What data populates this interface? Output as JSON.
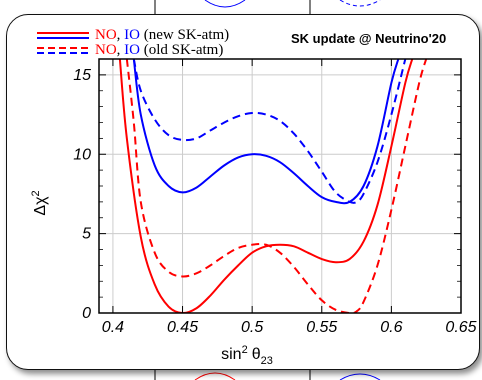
{
  "colors": {
    "normal_ordering": "#ff0000",
    "inverted_ordering": "#0000ff",
    "frame": "#000000",
    "grid": "#cccccc"
  },
  "annotation": "SK update @ Neutrino'20",
  "chart_data": {
    "type": "line",
    "title": "",
    "xlabel": "sin² θ₂₃",
    "xlabel_parts": {
      "main": "sin",
      "sup": "2",
      "theta": "θ",
      "sub": "23"
    },
    "ylabel": "Δχ²",
    "ylabel_parts": {
      "main": "Δχ",
      "sup": "2"
    },
    "xlim": [
      0.39,
      0.65
    ],
    "ylim": [
      0,
      16
    ],
    "xticks": [
      0.4,
      0.45,
      0.5,
      0.55,
      0.6,
      0.65
    ],
    "xtick_labels": [
      "0.4",
      "0.45",
      "0.5",
      "0.55",
      "0.6",
      "0.65"
    ],
    "yticks": [
      0,
      5,
      10,
      15
    ],
    "ytick_labels": [
      "0",
      "5",
      "10",
      "15"
    ],
    "grid": true,
    "legend": {
      "placement": "top-left",
      "entries": [
        {
          "parts": [
            {
              "text": "NO",
              "color": "#ff0000"
            },
            {
              "text": ", ",
              "color": "#000000"
            },
            {
              "text": "IO",
              "color": "#0000ff"
            },
            {
              "text": " (new SK-atm)",
              "color": "#000000"
            }
          ],
          "style": "solid"
        },
        {
          "parts": [
            {
              "text": "NO",
              "color": "#ff0000"
            },
            {
              "text": ", ",
              "color": "#000000"
            },
            {
              "text": "IO",
              "color": "#0000ff"
            },
            {
              "text": " (old SK-atm)",
              "color": "#000000"
            }
          ],
          "style": "dashed"
        }
      ]
    },
    "series": [
      {
        "ordering": "IO",
        "dataset": "new SK-atm",
        "color": "#0000ff",
        "style": "solid",
        "x": [
          0.415,
          0.42,
          0.43,
          0.44,
          0.45,
          0.46,
          0.47,
          0.48,
          0.49,
          0.5,
          0.51,
          0.52,
          0.53,
          0.54,
          0.55,
          0.56,
          0.57,
          0.58,
          0.59,
          0.6,
          0.605
        ],
        "y": [
          16.0,
          12.5,
          9.3,
          8.0,
          7.6,
          7.9,
          8.6,
          9.3,
          9.8,
          10.0,
          9.9,
          9.5,
          8.8,
          8.0,
          7.3,
          7.0,
          7.0,
          8.0,
          10.5,
          14.5,
          16.0
        ]
      },
      {
        "ordering": "IO",
        "dataset": "old SK-atm",
        "color": "#0000ff",
        "style": "dashed",
        "x": [
          0.415,
          0.42,
          0.43,
          0.44,
          0.45,
          0.46,
          0.47,
          0.48,
          0.49,
          0.5,
          0.51,
          0.52,
          0.53,
          0.54,
          0.55,
          0.56,
          0.57,
          0.575,
          0.58,
          0.59,
          0.6,
          0.61
        ],
        "y": [
          16.0,
          14.0,
          12.2,
          11.2,
          10.9,
          11.0,
          11.5,
          12.0,
          12.4,
          12.6,
          12.5,
          12.1,
          11.3,
          10.2,
          8.9,
          7.6,
          7.0,
          7.0,
          7.5,
          9.5,
          12.5,
          16.0
        ]
      },
      {
        "ordering": "NO",
        "dataset": "new SK-atm",
        "color": "#ff0000",
        "style": "solid",
        "x": [
          0.405,
          0.41,
          0.42,
          0.43,
          0.44,
          0.45,
          0.46,
          0.47,
          0.48,
          0.49,
          0.5,
          0.51,
          0.52,
          0.53,
          0.54,
          0.55,
          0.56,
          0.57,
          0.58,
          0.59,
          0.6,
          0.61,
          0.615
        ],
        "y": [
          16.0,
          11.0,
          4.8,
          1.8,
          0.4,
          0.0,
          0.3,
          1.1,
          2.1,
          3.0,
          3.8,
          4.2,
          4.3,
          4.2,
          3.8,
          3.4,
          3.2,
          3.4,
          4.5,
          6.8,
          10.5,
          14.5,
          16.0
        ]
      },
      {
        "ordering": "NO",
        "dataset": "old SK-atm",
        "color": "#ff0000",
        "style": "dashed",
        "x": [
          0.41,
          0.415,
          0.42,
          0.43,
          0.44,
          0.45,
          0.46,
          0.47,
          0.48,
          0.49,
          0.5,
          0.51,
          0.52,
          0.53,
          0.54,
          0.55,
          0.56,
          0.57,
          0.575,
          0.58,
          0.59,
          0.6,
          0.61,
          0.62,
          0.625
        ],
        "y": [
          16.0,
          12.0,
          7.0,
          3.8,
          2.6,
          2.3,
          2.5,
          3.0,
          3.6,
          4.1,
          4.3,
          4.3,
          3.8,
          2.9,
          1.8,
          0.8,
          0.2,
          0.0,
          0.1,
          0.7,
          3.0,
          6.5,
          10.5,
          14.5,
          16.0
        ]
      }
    ]
  }
}
